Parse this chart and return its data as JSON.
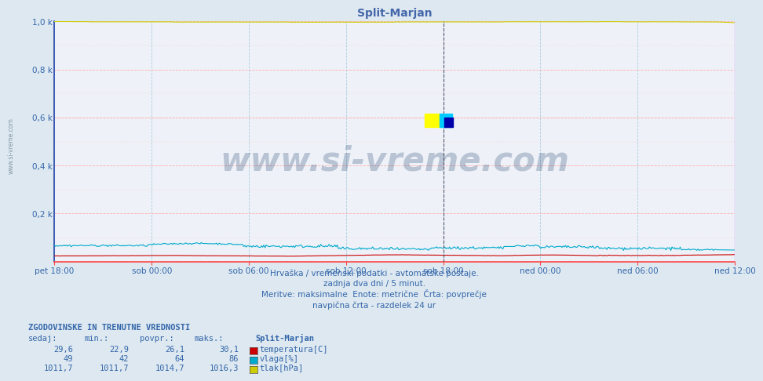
{
  "title": "Split-Marjan",
  "title_color": "#4466aa",
  "bg_color": "#dde8f0",
  "plot_bg_color": "#eef2f8",
  "ylabel": "",
  "yticks": [
    0.0,
    0.2,
    0.4,
    0.6,
    0.8,
    1.0
  ],
  "ytick_labels": [
    "",
    "0,2 k",
    "0,4 k",
    "0,6 k",
    "0,8 k",
    "1,0 k"
  ],
  "xtick_labels": [
    "pet 18:00",
    "sob 00:00",
    "sob 06:00",
    "sob 12:00",
    "sob 18:00",
    "ned 00:00",
    "ned 06:00",
    "ned 12:00"
  ],
  "n_points": 576,
  "temp_min": 22.9,
  "temp_max": 30.1,
  "temp_avg": 26.1,
  "temp_cur": 29.6,
  "vlaga_min": 42,
  "vlaga_max": 86,
  "vlaga_avg": 64,
  "vlaga_cur": 49,
  "tlak_min": 1011.7,
  "tlak_max": 1016.3,
  "tlak_avg": 1014.7,
  "tlak_cur": 1011.7,
  "temp_color": "#cc0000",
  "vlaga_color": "#00aacc",
  "tlak_color": "#cccc00",
  "vertical_line_color": "#888888",
  "right_line_color": "#ffaaff",
  "watermark": "www.si-vreme.com",
  "watermark_color": "#1a3a6a",
  "info_text1": "Hrvaška / vremenski podatki - avtomatske postaje.",
  "info_text2": "zadnja dva dni / 5 minut.",
  "info_text3": "Meritve: maksimalne  Enote: metrične  Črta: povprečje",
  "info_text4": "navpična črta - razdelek 24 ur",
  "legend_title": "Split-Marjan",
  "legend_temp": "temperatura[C]",
  "legend_vlaga": "vlaga[%]",
  "legend_tlak": "tlak[hPa]",
  "table_header": "ZGODOVINSKE IN TRENUTNE VREDNOSTI",
  "col_sedaj": "sedaj:",
  "col_min": "min.:",
  "col_povpr": "povpr.:",
  "col_maks": "maks.:",
  "text_color": "#3366aa",
  "grid_h_color": "#ffaaaa",
  "grid_v_color": "#aaccdd",
  "spine_left_color": "#2244aa",
  "spine_bottom_color": "#ff4444"
}
